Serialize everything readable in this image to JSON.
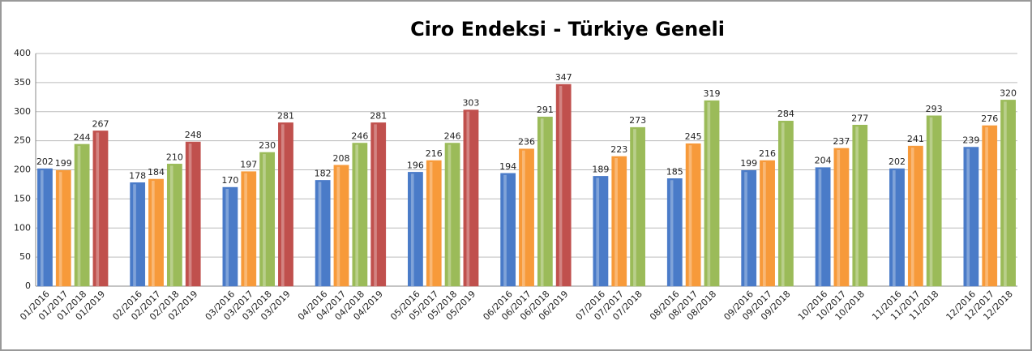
{
  "chart_data": {
    "type": "bar",
    "title": "Ciro Endeksi - Türkiye Geneli",
    "colors": [
      "#4a7bc8",
      "#f79a3a",
      "#9bbb59",
      "#c0504d"
    ],
    "groups": [
      {
        "categories": [
          "01/2016",
          "01/2017",
          "01/2018",
          "01/2019"
        ],
        "values": [
          202,
          199,
          244,
          267
        ]
      },
      {
        "categories": [
          "02/2016",
          "02/2017",
          "02/2018",
          "02/2019"
        ],
        "values": [
          178,
          184,
          210,
          248
        ]
      },
      {
        "categories": [
          "03/2016",
          "03/2017",
          "03/2018",
          "03/2019"
        ],
        "values": [
          170,
          197,
          230,
          281
        ]
      },
      {
        "categories": [
          "04/2016",
          "04/2017",
          "04/2018",
          "04/2019"
        ],
        "values": [
          182,
          208,
          246,
          281
        ]
      },
      {
        "categories": [
          "05/2016",
          "05/2017",
          "05/2018",
          "05/2019"
        ],
        "values": [
          196,
          216,
          246,
          303
        ]
      },
      {
        "categories": [
          "06/2016",
          "06/2017",
          "06/2018",
          "06/2019"
        ],
        "values": [
          194,
          236,
          291,
          347
        ]
      },
      {
        "categories": [
          "07/2016",
          "07/2017",
          "07/2018"
        ],
        "values": [
          189,
          223,
          273
        ]
      },
      {
        "categories": [
          "08/2016",
          "08/2017",
          "08/2018"
        ],
        "values": [
          185,
          245,
          319
        ]
      },
      {
        "categories": [
          "09/2016",
          "09/2017",
          "09/2018"
        ],
        "values": [
          199,
          216,
          284
        ]
      },
      {
        "categories": [
          "10/2016",
          "10/2017",
          "10/2018"
        ],
        "values": [
          204,
          237,
          277
        ]
      },
      {
        "categories": [
          "11/2016",
          "11/2017",
          "11/2018"
        ],
        "values": [
          202,
          241,
          293
        ]
      },
      {
        "categories": [
          "12/2016",
          "12/2017",
          "12/2018"
        ],
        "values": [
          239,
          276,
          320
        ]
      }
    ],
    "ylim": [
      0,
      400
    ],
    "yticks": [
      0,
      50,
      100,
      150,
      200,
      250,
      300,
      350,
      400
    ],
    "grid": true
  }
}
